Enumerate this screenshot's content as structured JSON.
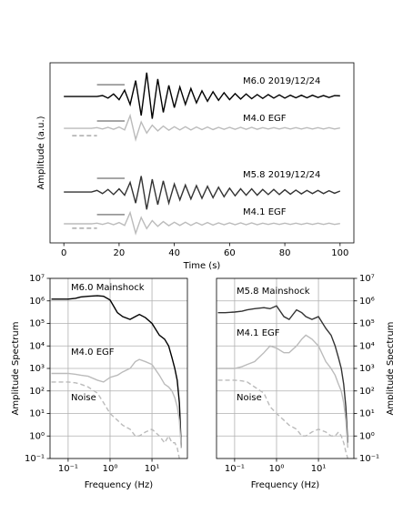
{
  "chart_data": [
    {
      "type": "line",
      "xlabel": "Time (s)",
      "ylabel": "Amplitude (a.u.)",
      "xlim": [
        -5,
        105
      ],
      "ylim": [
        -4.6,
        1.06
      ],
      "xticks": [
        0,
        20,
        40,
        60,
        80,
        100
      ],
      "grid": false,
      "x": [
        0,
        2,
        4,
        6,
        8,
        10,
        12,
        14,
        16,
        18,
        20,
        22,
        24,
        26,
        28,
        30,
        32,
        34,
        36,
        38,
        40,
        42,
        44,
        46,
        48,
        50,
        52,
        54,
        56,
        58,
        60,
        62,
        64,
        66,
        68,
        70,
        72,
        74,
        76,
        78,
        80,
        82,
        84,
        86,
        88,
        90,
        92,
        94,
        96,
        98,
        100
      ],
      "series": [
        {
          "name": "M6.0 2019/12/24",
          "color": "#000000",
          "label_color": "#808080",
          "values": [
            0,
            0,
            0,
            0,
            0,
            0,
            0,
            0.03,
            -0.05,
            0.08,
            -0.1,
            0.2,
            -0.25,
            0.5,
            -0.6,
            0.75,
            -0.7,
            0.55,
            -0.5,
            0.35,
            -0.35,
            0.3,
            -0.25,
            0.25,
            -0.2,
            0.18,
            -0.15,
            0.15,
            -0.12,
            0.12,
            -0.1,
            0.09,
            -0.08,
            0.08,
            -0.07,
            0.06,
            -0.06,
            0.06,
            -0.05,
            0.05,
            -0.05,
            0.04,
            -0.04,
            0.04,
            -0.04,
            0.04,
            -0.03,
            0.03,
            -0.03,
            0.03,
            0.02
          ]
        },
        {
          "name": "M4.0 EGF",
          "color": "#bbbbbb",
          "label_color": "#808080",
          "values": [
            -1,
            -1,
            -1,
            -1,
            -1,
            -1,
            -0.98,
            -1.02,
            -0.97,
            -1.03,
            -0.96,
            -1.05,
            -0.6,
            -1.35,
            -0.8,
            -1.15,
            -0.9,
            -1.08,
            -0.93,
            -1.06,
            -0.95,
            -1.05,
            -0.95,
            -1.05,
            -0.96,
            -1.04,
            -0.96,
            -1.04,
            -0.97,
            -1.03,
            -0.97,
            -1.03,
            -0.97,
            -1.03,
            -0.97,
            -1.03,
            -0.98,
            -1.02,
            -0.98,
            -1.02,
            -0.98,
            -1.02,
            -0.98,
            -1.02,
            -0.98,
            -1.02,
            -0.98,
            -1.02,
            -0.98,
            -1.02,
            -0.99
          ]
        },
        {
          "name": "M5.8 2019/12/24",
          "color": "#333333",
          "label_color": "#000000",
          "values": [
            -3,
            -3,
            -3,
            -3,
            -3,
            -3,
            -2.95,
            -3.05,
            -2.92,
            -3.08,
            -2.9,
            -3.1,
            -2.7,
            -3.35,
            -2.5,
            -3.55,
            -2.6,
            -3.4,
            -2.65,
            -3.35,
            -2.75,
            -3.25,
            -2.78,
            -3.22,
            -2.8,
            -3.2,
            -2.82,
            -3.18,
            -2.85,
            -3.15,
            -2.88,
            -3.12,
            -2.9,
            -3.1,
            -2.9,
            -3.1,
            -2.92,
            -3.08,
            -2.92,
            -3.08,
            -2.93,
            -3.07,
            -2.94,
            -3.06,
            -2.95,
            -3.05,
            -2.95,
            -3.05,
            -2.96,
            -3.04,
            -2.97
          ]
        },
        {
          "name": "M4.1 EGF",
          "color": "#bbbbbb",
          "label_color": "#808080",
          "values": [
            -4,
            -4,
            -4,
            -4,
            -4,
            -4,
            -3.98,
            -4.02,
            -3.97,
            -4.03,
            -3.96,
            -4.05,
            -3.65,
            -4.3,
            -3.8,
            -4.15,
            -3.9,
            -4.08,
            -3.93,
            -4.06,
            -3.95,
            -4.05,
            -3.95,
            -4.05,
            -3.96,
            -4.04,
            -3.96,
            -4.04,
            -3.97,
            -4.03,
            -3.97,
            -4.03,
            -3.97,
            -4.03,
            -3.97,
            -4.03,
            -3.98,
            -4.02,
            -3.98,
            -4.02,
            -3.98,
            -4.02,
            -3.98,
            -4.02,
            -3.98,
            -4.02,
            -3.98,
            -4.02,
            -3.98,
            -4.02,
            -3.99
          ]
        }
      ],
      "windows": [
        {
          "x": [
            12,
            22
          ],
          "y": 0.37,
          "dashed": false,
          "color": "#888888"
        },
        {
          "x": [
            12,
            22
          ],
          "y": -0.77,
          "dashed": false,
          "color": "#888888"
        },
        {
          "x": [
            3,
            12
          ],
          "y": -1.23,
          "dashed": true,
          "color": "#aaaaaa"
        },
        {
          "x": [
            12,
            22
          ],
          "y": -2.57,
          "dashed": false,
          "color": "#888888"
        },
        {
          "x": [
            12,
            22
          ],
          "y": -3.71,
          "dashed": false,
          "color": "#888888"
        },
        {
          "x": [
            3,
            12
          ],
          "y": -4.14,
          "dashed": true,
          "color": "#aaaaaa"
        }
      ]
    },
    {
      "type": "line",
      "xlabel": "Frequency (Hz)",
      "ylabel": "Amplitude Spectrum",
      "log_x": true,
      "log_y": true,
      "yaxis_side": "left",
      "grid": true,
      "xlim": [
        0.037,
        70
      ],
      "ylim": [
        0.1,
        10000000
      ],
      "xticks": [
        {
          "value": 0.1,
          "label": "10⁻¹"
        },
        {
          "value": 1,
          "label": "10⁰"
        },
        {
          "value": 10,
          "label": "10¹"
        }
      ],
      "yticks": [
        {
          "value": 0.1,
          "label": "10⁻¹"
        },
        {
          "value": 1,
          "label": "10⁰"
        },
        {
          "value": 10,
          "label": "10¹"
        },
        {
          "value": 100,
          "label": "10²"
        },
        {
          "value": 1000,
          "label": "10³"
        },
        {
          "value": 10000,
          "label": "10⁴"
        },
        {
          "value": 100000,
          "label": "10⁵"
        },
        {
          "value": 1000000,
          "label": "10⁶"
        },
        {
          "value": 10000000,
          "label": "10⁷"
        }
      ],
      "x": [
        0.04,
        0.06,
        0.1,
        0.15,
        0.2,
        0.3,
        0.5,
        0.7,
        1,
        1.5,
        2,
        3,
        4,
        5,
        7,
        10,
        15,
        20,
        25,
        30,
        35,
        40,
        45,
        50
      ],
      "series": [
        {
          "name": "M6.0 Mainshock",
          "color": "#000000",
          "label_color": "#000000",
          "dashed": false,
          "values": [
            1200000,
            1200000,
            1200000,
            1300000,
            1500000,
            1600000,
            1700000,
            1600000,
            1100000,
            300000,
            200000,
            150000,
            200000,
            250000,
            180000,
            100000,
            30000,
            20000,
            10000,
            3000,
            1000,
            300,
            30,
            0.3
          ]
        },
        {
          "name": "M4.0 EGF",
          "color": "#bbbbbb",
          "label_color": "#bbbbbb",
          "dashed": false,
          "values": [
            600,
            600,
            600,
            550,
            500,
            450,
            300,
            250,
            400,
            500,
            700,
            1000,
            2000,
            2500,
            2000,
            1500,
            500,
            200,
            150,
            100,
            50,
            20,
            5,
            0.3
          ]
        },
        {
          "name": "Noise",
          "color": "#bbbbbb",
          "label_color": "#bbbbbb",
          "dashed": true,
          "values": [
            250,
            250,
            250,
            230,
            200,
            150,
            80,
            30,
            10,
            5,
            3,
            2,
            1,
            1,
            1.5,
            2,
            1,
            0.5,
            1,
            0.5,
            0.5,
            0.3,
            0.1,
            0.1
          ]
        }
      ]
    },
    {
      "type": "line",
      "xlabel": "Frequency (Hz)",
      "ylabel": "Amplitude Spectrum",
      "log_x": true,
      "log_y": true,
      "yaxis_side": "right",
      "grid": true,
      "xlim": [
        0.037,
        70
      ],
      "ylim": [
        0.1,
        10000000
      ],
      "xticks": [
        {
          "value": 0.1,
          "label": "10⁻¹"
        },
        {
          "value": 1,
          "label": "10⁰"
        },
        {
          "value": 10,
          "label": "10¹"
        }
      ],
      "yticks": [
        {
          "value": 0.1,
          "label": "10⁻¹"
        },
        {
          "value": 1,
          "label": "10⁰"
        },
        {
          "value": 10,
          "label": "10¹"
        },
        {
          "value": 100,
          "label": "10²"
        },
        {
          "value": 1000,
          "label": "10³"
        },
        {
          "value": 10000,
          "label": "10⁴"
        },
        {
          "value": 100000,
          "label": "10⁵"
        },
        {
          "value": 1000000,
          "label": "10⁶"
        },
        {
          "value": 10000000,
          "label": "10⁷"
        }
      ],
      "x": [
        0.04,
        0.06,
        0.1,
        0.15,
        0.2,
        0.3,
        0.5,
        0.7,
        1,
        1.5,
        2,
        3,
        4,
        5,
        7,
        10,
        15,
        20,
        25,
        30,
        35,
        40,
        45,
        50
      ],
      "series": [
        {
          "name": "M5.8 Mainshock",
          "color": "#333333",
          "label_color": "#000000",
          "dashed": false,
          "values": [
            300000,
            300000,
            320000,
            350000,
            400000,
            450000,
            500000,
            450000,
            600000,
            200000,
            150000,
            400000,
            300000,
            200000,
            150000,
            200000,
            60000,
            30000,
            10000,
            3000,
            1000,
            200,
            20,
            0.5
          ]
        },
        {
          "name": "M4.1 EGF",
          "color": "#bbbbbb",
          "label_color": "#bbbbbb",
          "dashed": false,
          "values": [
            1000,
            1000,
            1000,
            1200,
            1500,
            2000,
            5000,
            10000,
            8000,
            5000,
            5000,
            10000,
            20000,
            30000,
            20000,
            10000,
            2000,
            1000,
            500,
            200,
            100,
            30,
            5,
            0.3
          ]
        },
        {
          "name": "Noise",
          "color": "#bbbbbb",
          "label_color": "#bbbbbb",
          "dashed": true,
          "values": [
            300,
            300,
            300,
            280,
            250,
            150,
            80,
            20,
            10,
            5,
            3,
            2,
            1,
            1,
            1.5,
            2,
            1.5,
            1,
            1,
            1.5,
            1,
            0.5,
            0.2,
            0.1
          ]
        }
      ]
    }
  ]
}
